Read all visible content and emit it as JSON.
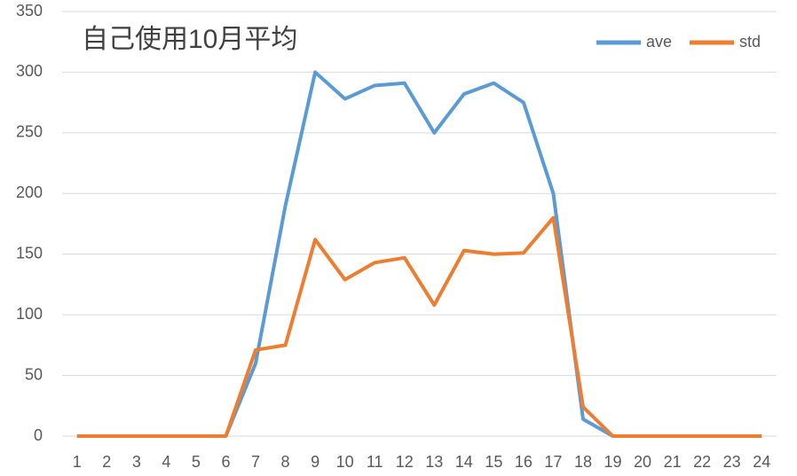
{
  "chart_data": {
    "type": "line",
    "title": "自己使用10月平均",
    "categories": [
      "1",
      "2",
      "3",
      "4",
      "5",
      "6",
      "7",
      "8",
      "9",
      "10",
      "11",
      "12",
      "13",
      "14",
      "15",
      "16",
      "17",
      "18",
      "19",
      "20",
      "21",
      "22",
      "23",
      "24"
    ],
    "series": [
      {
        "name": "ave",
        "color": "#5b9bd5",
        "values": [
          0,
          0,
          0,
          0,
          0,
          0,
          60,
          190,
          300,
          278,
          289,
          291,
          250,
          282,
          291,
          275,
          200,
          14,
          0,
          0,
          0,
          0,
          0,
          0
        ]
      },
      {
        "name": "std",
        "color": "#ed7d31",
        "values": [
          0,
          0,
          0,
          0,
          0,
          0,
          71,
          75,
          162,
          129,
          143,
          147,
          108,
          153,
          150,
          151,
          180,
          24,
          0,
          0,
          0,
          0,
          0,
          0
        ]
      }
    ],
    "ylim": [
      0,
      350
    ],
    "yticks": [
      0,
      50,
      100,
      150,
      200,
      250,
      300,
      350
    ],
    "grid": true,
    "legend": "top-right"
  }
}
